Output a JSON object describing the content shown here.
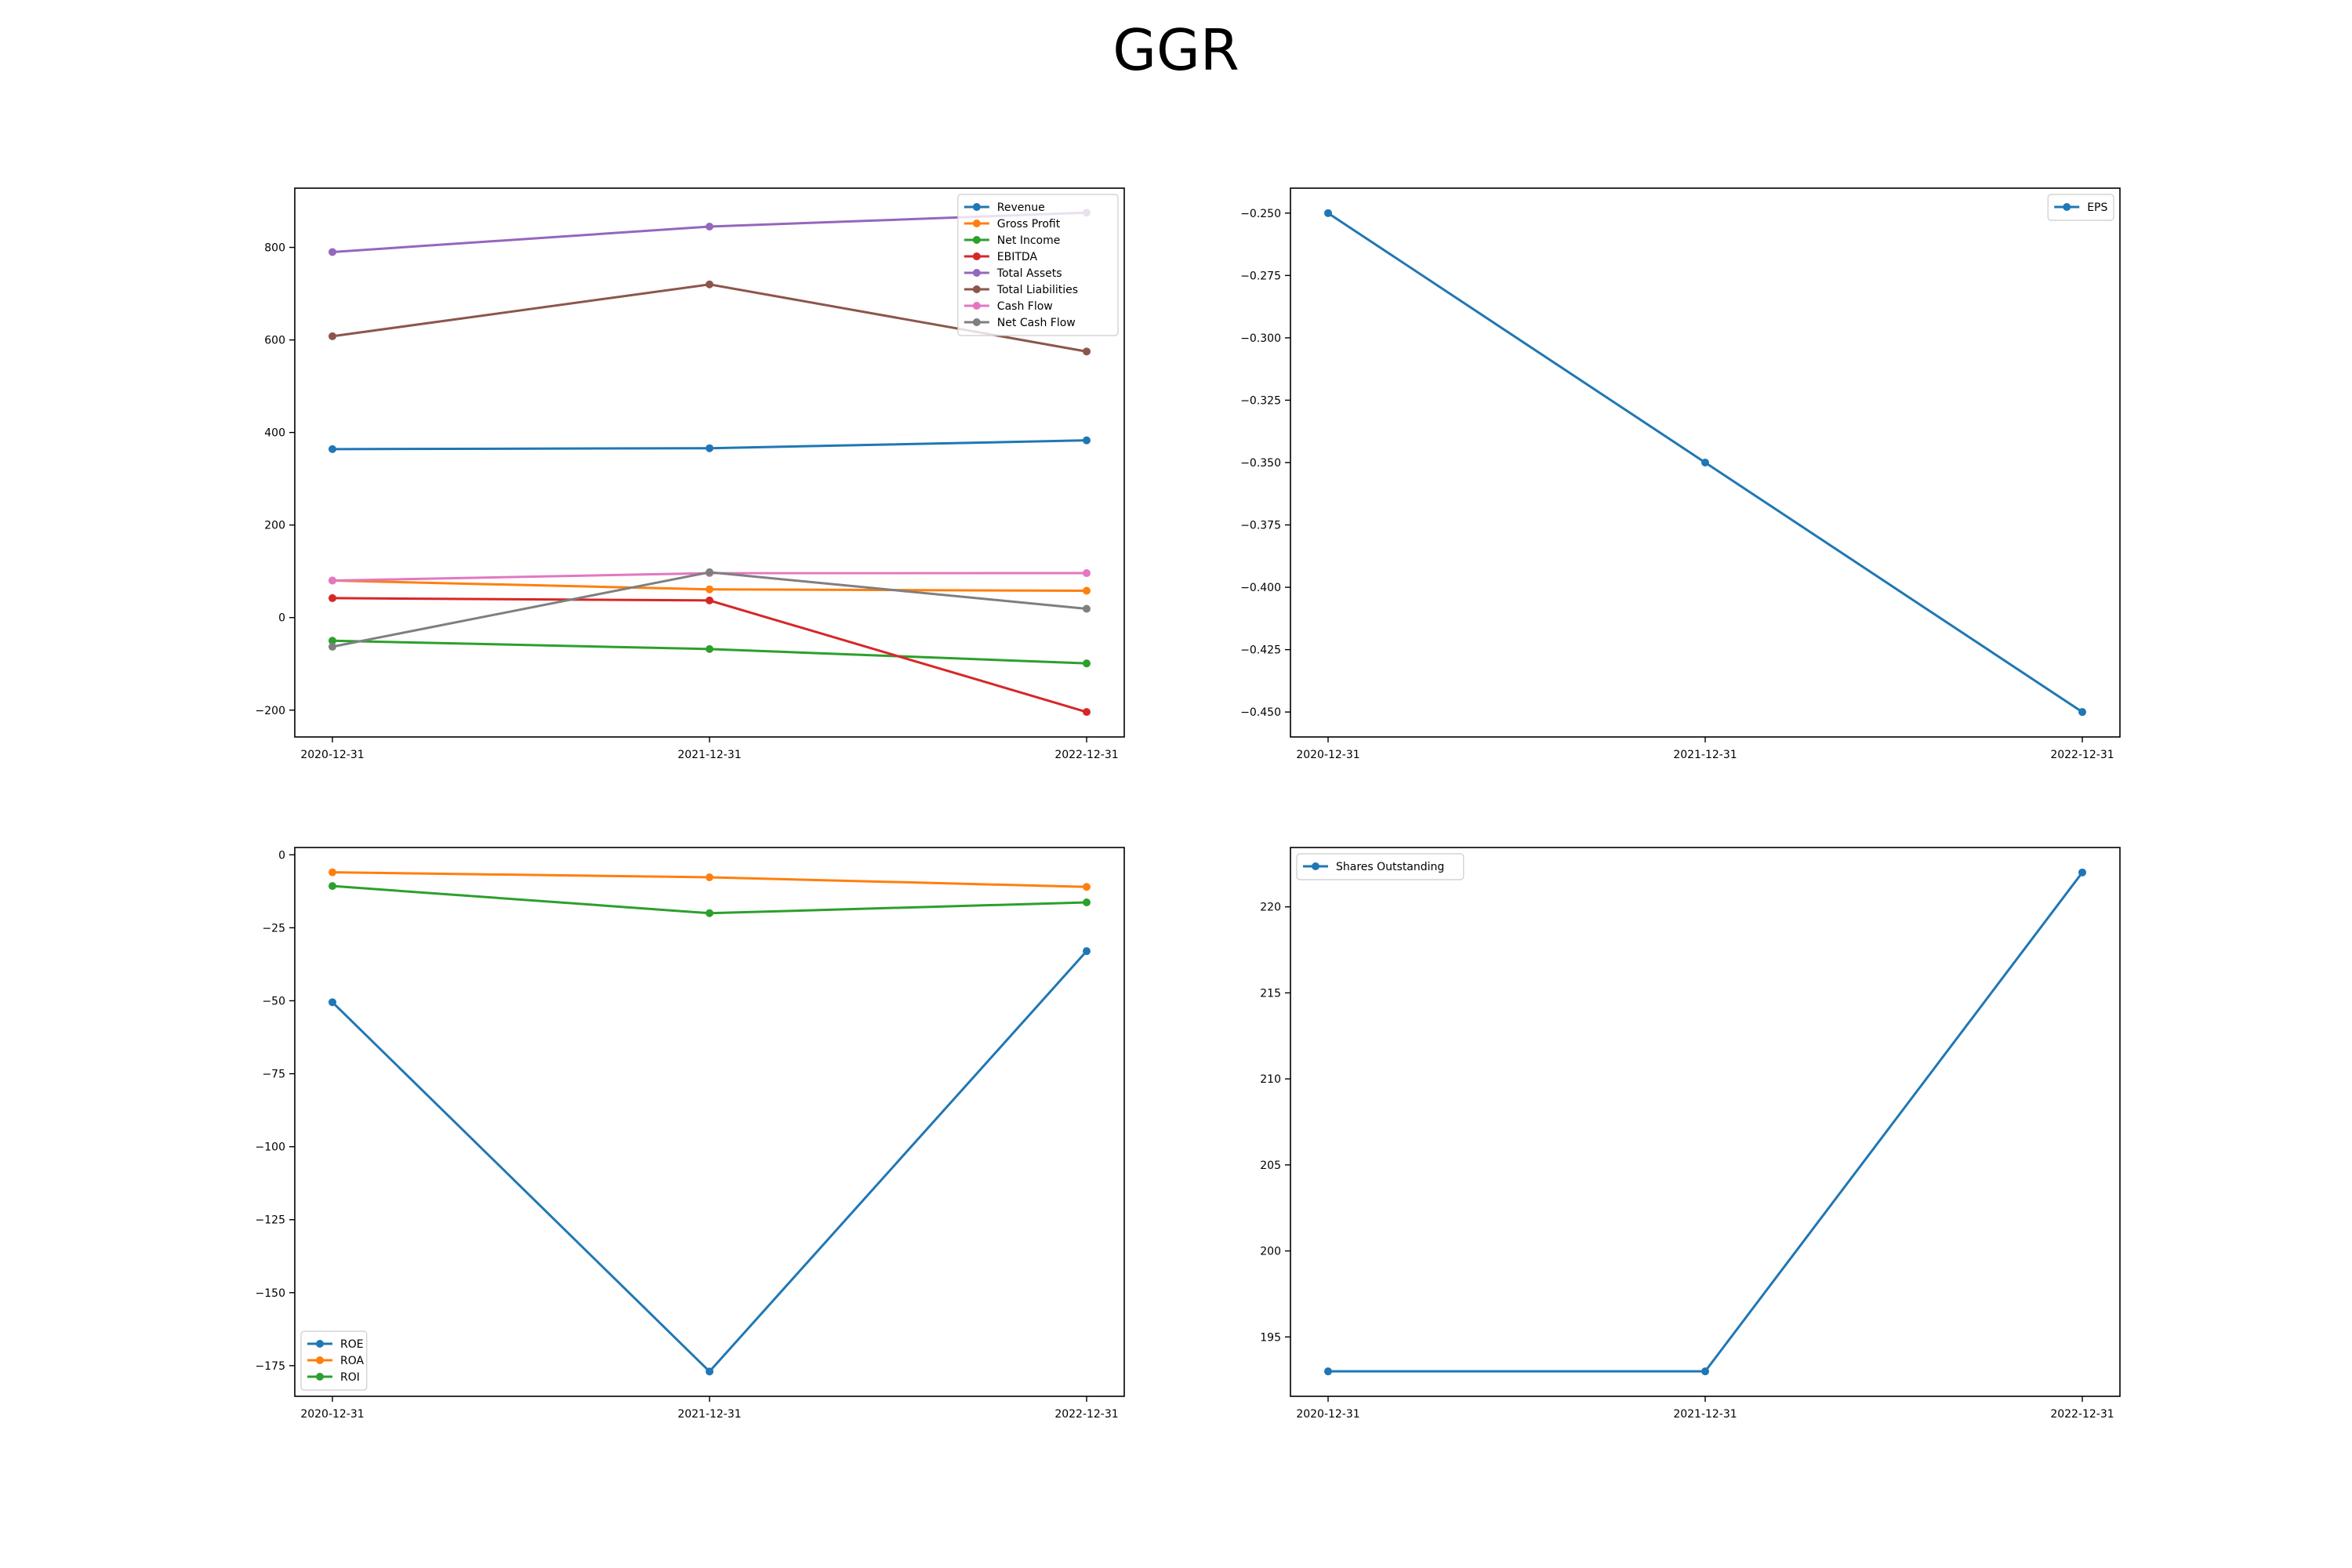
{
  "figure": {
    "title": "GGR"
  },
  "chart_data": [
    {
      "type": "line",
      "title": "",
      "categories": [
        "2020-12-31",
        "2021-12-31",
        "2022-12-31"
      ],
      "ylim": [
        -258,
        928
      ],
      "yticks": [
        -200,
        0,
        200,
        400,
        600,
        800
      ],
      "ytick_labels": [
        "−200",
        "0",
        "200",
        "400",
        "600",
        "800"
      ],
      "legend_position": "top-right",
      "series": [
        {
          "name": "Revenue",
          "color": "#1f77b4",
          "values": [
            364,
            366,
            383
          ]
        },
        {
          "name": "Gross Profit",
          "color": "#ff7f0e",
          "values": [
            80,
            61,
            58
          ]
        },
        {
          "name": "Net Income",
          "color": "#2ca02c",
          "values": [
            -50,
            -68,
            -99
          ]
        },
        {
          "name": "EBITDA",
          "color": "#d62728",
          "values": [
            42,
            37,
            -204
          ]
        },
        {
          "name": "Total Assets",
          "color": "#9467bd",
          "values": [
            790,
            845,
            875
          ]
        },
        {
          "name": "Total Liabilities",
          "color": "#8c564b",
          "values": [
            608,
            720,
            575
          ]
        },
        {
          "name": "Cash Flow",
          "color": "#e377c2",
          "values": [
            80,
            96,
            96
          ]
        },
        {
          "name": "Net Cash Flow",
          "color": "#7f7f7f",
          "values": [
            -63,
            98,
            19
          ]
        }
      ]
    },
    {
      "type": "line",
      "title": "",
      "categories": [
        "2020-12-31",
        "2021-12-31",
        "2022-12-31"
      ],
      "ylim": [
        -0.46,
        -0.24
      ],
      "yticks": [
        -0.45,
        -0.425,
        -0.4,
        -0.375,
        -0.35,
        -0.325,
        -0.3,
        -0.275,
        -0.25
      ],
      "ytick_labels": [
        "−0.450",
        "−0.425",
        "−0.400",
        "−0.375",
        "−0.350",
        "−0.325",
        "−0.300",
        "−0.275",
        "−0.250"
      ],
      "legend_position": "top-right",
      "series": [
        {
          "name": "EPS",
          "color": "#1f77b4",
          "values": [
            -0.25,
            -0.35,
            -0.45
          ]
        }
      ]
    },
    {
      "type": "line",
      "title": "",
      "categories": [
        "2020-12-31",
        "2021-12-31",
        "2022-12-31"
      ],
      "ylim": [
        -185.5,
        2.5
      ],
      "yticks": [
        -175,
        -150,
        -125,
        -100,
        -75,
        -50,
        -25,
        0
      ],
      "ytick_labels": [
        "−175",
        "−150",
        "−125",
        "−100",
        "−75",
        "−50",
        "−25",
        "0"
      ],
      "legend_position": "bottom-left",
      "series": [
        {
          "name": "ROE",
          "color": "#1f77b4",
          "values": [
            -50.5,
            -177,
            -33
          ]
        },
        {
          "name": "ROA",
          "color": "#ff7f0e",
          "values": [
            -6,
            -7.7,
            -11
          ]
        },
        {
          "name": "ROI",
          "color": "#2ca02c",
          "values": [
            -10.7,
            -20,
            -16.3
          ]
        }
      ]
    },
    {
      "type": "line",
      "title": "",
      "categories": [
        "2020-12-31",
        "2021-12-31",
        "2022-12-31"
      ],
      "ylim": [
        191.55,
        223.45
      ],
      "yticks": [
        195,
        200,
        205,
        210,
        215,
        220
      ],
      "ytick_labels": [
        "195",
        "200",
        "205",
        "210",
        "215",
        "220"
      ],
      "legend_position": "top-left",
      "series": [
        {
          "name": "Shares Outstanding",
          "color": "#1f77b4",
          "values": [
            193,
            193,
            222
          ]
        }
      ]
    }
  ]
}
